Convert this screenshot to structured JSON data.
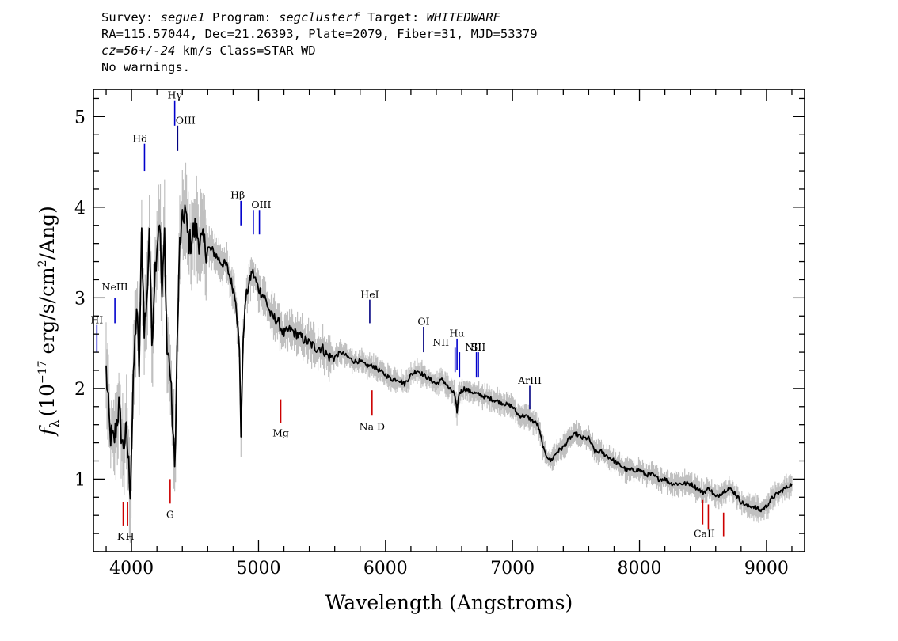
{
  "header": {
    "survey_label": "Survey:",
    "survey": "segue1",
    "program_label": "Program:",
    "program": "segclusterf",
    "target_label": "Target:",
    "target": "WHITEDWARF",
    "line2": "RA=115.57044, Dec=21.26393, Plate=2079, Fiber=31, MJD=53379",
    "cz_label": "cz=",
    "cz": "56+/-24",
    "line3_rest": " km/s Class=STAR WD",
    "line4": "No warnings."
  },
  "chart_data": {
    "type": "line",
    "title": "",
    "xlabel": "Wavelength (Angstroms)",
    "ylabel_parts": {
      "f": "f",
      "lambda": "λ",
      "pre": "(10",
      "exp": "−17",
      "mid": " erg/s/cm",
      "exp2": "2",
      "post": "/Ang)"
    },
    "xlim": [
      3700,
      9300
    ],
    "ylim": [
      0.2,
      5.3
    ],
    "xticks": [
      4000,
      5000,
      6000,
      7000,
      8000,
      9000
    ],
    "yticks": [
      1,
      2,
      3,
      4,
      5
    ],
    "series_color": "#000000",
    "error_color": "#c0c0c0",
    "flux": {
      "x": [
        3800,
        3830,
        3860,
        3900,
        3930,
        3960,
        3990,
        4020,
        4040,
        4060,
        4080,
        4100,
        4120,
        4140,
        4160,
        4180,
        4200,
        4220,
        4240,
        4260,
        4280,
        4300,
        4320,
        4340,
        4360,
        4380,
        4400,
        4420,
        4440,
        4460,
        4480,
        4500,
        4550,
        4600,
        4650,
        4700,
        4750,
        4780,
        4820,
        4850,
        4862,
        4880,
        4900,
        4950,
        5000,
        5050,
        5100,
        5150,
        5200,
        5250,
        5300,
        5350,
        5400,
        5450,
        5500,
        5550,
        5600,
        5650,
        5700,
        5750,
        5800,
        5850,
        5900,
        5950,
        6000,
        6050,
        6100,
        6150,
        6200,
        6250,
        6300,
        6350,
        6400,
        6450,
        6500,
        6540,
        6563,
        6580,
        6620,
        6700,
        6800,
        6900,
        7000,
        7050,
        7100,
        7150,
        7200,
        7250,
        7300,
        7350,
        7400,
        7450,
        7500,
        7550,
        7600,
        7650,
        7700,
        7750,
        7800,
        7850,
        7900,
        7950,
        8000,
        8050,
        8100,
        8150,
        8200,
        8250,
        8300,
        8350,
        8400,
        8450,
        8500,
        8550,
        8600,
        8650,
        8700,
        8750,
        8800,
        8850,
        8900,
        8950,
        9000,
        9050,
        9100,
        9150,
        9200
      ],
      "y": [
        2.2,
        1.5,
        1.4,
        1.8,
        1.35,
        1.5,
        0.9,
        2.3,
        2.9,
        2.2,
        3.7,
        2.7,
        2.9,
        3.8,
        2.5,
        3.2,
        3.6,
        3.9,
        3.0,
        3.7,
        2.4,
        2.3,
        1.7,
        1.1,
        2.5,
        3.6,
        3.8,
        4.0,
        3.7,
        3.6,
        3.7,
        3.75,
        3.6,
        3.55,
        3.5,
        3.4,
        3.35,
        3.2,
        3.0,
        2.4,
        1.5,
        2.6,
        3.0,
        3.3,
        3.1,
        3.0,
        2.8,
        2.75,
        2.6,
        2.65,
        2.6,
        2.55,
        2.5,
        2.45,
        2.45,
        2.35,
        2.35,
        2.4,
        2.35,
        2.3,
        2.3,
        2.25,
        2.25,
        2.2,
        2.15,
        2.1,
        2.1,
        2.05,
        2.15,
        2.2,
        2.15,
        2.1,
        2.05,
        2.1,
        2.0,
        1.95,
        1.75,
        1.95,
        2.0,
        1.95,
        1.9,
        1.85,
        1.8,
        1.7,
        1.7,
        1.65,
        1.6,
        1.3,
        1.2,
        1.3,
        1.35,
        1.45,
        1.5,
        1.45,
        1.45,
        1.3,
        1.3,
        1.25,
        1.2,
        1.15,
        1.1,
        1.1,
        1.1,
        1.05,
        1.05,
        1.0,
        1.0,
        0.95,
        0.95,
        0.95,
        0.95,
        0.9,
        0.85,
        0.9,
        0.8,
        0.85,
        0.9,
        0.85,
        0.75,
        0.7,
        0.7,
        0.65,
        0.7,
        0.8,
        0.85,
        0.9,
        0.95
      ]
    },
    "lines": [
      {
        "label": "HI",
        "x": 3727,
        "color": "#0000cc",
        "y_top": 2.7,
        "y_bot": 2.4,
        "label_y": 2.72,
        "label_dx": 0
      },
      {
        "label": "NeIII",
        "x": 3869,
        "color": "#0000cc",
        "y_top": 3.0,
        "y_bot": 2.72,
        "label_y": 3.08,
        "label_dx": 0
      },
      {
        "label": "Hδ",
        "x": 4102,
        "color": "#0000cc",
        "y_top": 4.7,
        "y_bot": 4.4,
        "label_y": 4.72,
        "label_dx": -6
      },
      {
        "label": "Hγ",
        "x": 4340,
        "color": "#0000cc",
        "y_top": 5.18,
        "y_bot": 4.9,
        "label_y": 5.2,
        "label_dx": 0
      },
      {
        "label": "OIII",
        "x": 4363,
        "color": "#000080",
        "y_top": 4.9,
        "y_bot": 4.62,
        "label_y": 4.92,
        "label_dx": 10
      },
      {
        "label": "Hβ",
        "x": 4861,
        "color": "#0000cc",
        "y_top": 4.07,
        "y_bot": 3.8,
        "label_y": 4.1,
        "label_dx": -4
      },
      {
        "label": "OIII",
        "x": 4959,
        "color": "#0000cc",
        "y_top": 3.97,
        "y_bot": 3.7,
        "label_y": 3.99,
        "label_dx": 10
      },
      {
        "label": "",
        "x": 5007,
        "color": "#0000cc",
        "y_top": 3.97,
        "y_bot": 3.7,
        "label_y": 0,
        "label_dx": 0
      },
      {
        "label": "HeI",
        "x": 5876,
        "color": "#000080",
        "y_top": 2.98,
        "y_bot": 2.72,
        "label_y": 3.0,
        "label_dx": 0
      },
      {
        "label": "OI",
        "x": 6300,
        "color": "#000080",
        "y_top": 2.68,
        "y_bot": 2.4,
        "label_y": 2.7,
        "label_dx": 0
      },
      {
        "label": "NII",
        "x": 6548,
        "color": "#0000cc",
        "y_top": 2.45,
        "y_bot": 2.18,
        "label_y": 2.47,
        "label_dx": -18
      },
      {
        "label": "Hα",
        "x": 6563,
        "color": "#0000cc",
        "y_top": 2.55,
        "y_bot": 2.2,
        "label_y": 2.57,
        "label_dx": 0
      },
      {
        "label": "",
        "x": 6583,
        "color": "#0000cc",
        "y_top": 2.4,
        "y_bot": 2.12,
        "label_y": 0,
        "label_dx": 0
      },
      {
        "label": "NII",
        "x": 6716,
        "color": "#0000cc",
        "y_top": 2.4,
        "y_bot": 2.12,
        "label_y": 2.42,
        "label_dx": -4
      },
      {
        "label": "SII",
        "x": 6731,
        "color": "#0000cc",
        "y_top": 2.4,
        "y_bot": 2.12,
        "label_y": 2.42,
        "label_dx": 0
      },
      {
        "label": "ArIII",
        "x": 7136,
        "color": "#000080",
        "y_top": 2.03,
        "y_bot": 1.77,
        "label_y": 2.05,
        "label_dx": 0
      },
      {
        "label": "K",
        "x": 3934,
        "color": "#cc0000",
        "y_top": 0.75,
        "y_bot": 0.48,
        "label_y": 0.33,
        "label_dx": -3
      },
      {
        "label": "H",
        "x": 3969,
        "color": "#cc0000",
        "y_top": 0.75,
        "y_bot": 0.48,
        "label_y": 0.33,
        "label_dx": 3
      },
      {
        "label": "G",
        "x": 4304,
        "color": "#cc0000",
        "y_top": 1.0,
        "y_bot": 0.73,
        "label_y": 0.57,
        "label_dx": 0
      },
      {
        "label": "Mg",
        "x": 5175,
        "color": "#cc0000",
        "y_top": 1.88,
        "y_bot": 1.62,
        "label_y": 1.47,
        "label_dx": 0
      },
      {
        "label": "Na D",
        "x": 5894,
        "color": "#cc0000",
        "y_top": 1.98,
        "y_bot": 1.7,
        "label_y": 1.54,
        "label_dx": 0
      },
      {
        "label": "CaII",
        "x": 8498,
        "color": "#cc0000",
        "y_top": 0.77,
        "y_bot": 0.5,
        "label_y": 0.36,
        "label_dx": 2
      },
      {
        "label": "",
        "x": 8542,
        "color": "#cc0000",
        "y_top": 0.72,
        "y_bot": 0.45,
        "label_y": 0,
        "label_dx": 0
      },
      {
        "label": "",
        "x": 8662,
        "color": "#cc0000",
        "y_top": 0.63,
        "y_bot": 0.37,
        "label_y": 0,
        "label_dx": 0
      }
    ]
  }
}
